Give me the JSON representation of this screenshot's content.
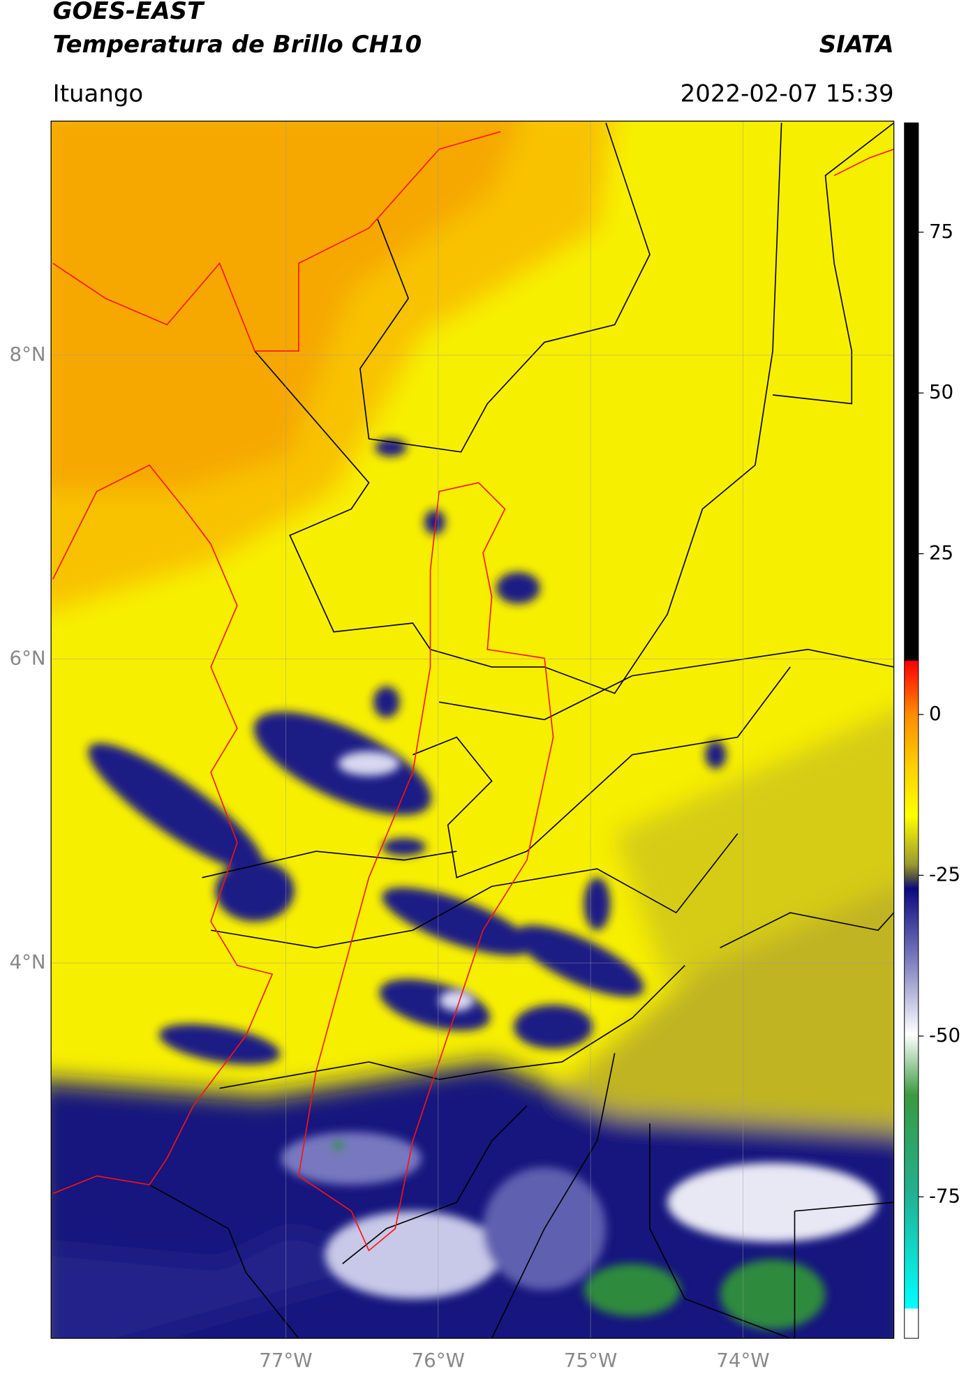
{
  "chart_data": {
    "type": "map",
    "title": "GOES-EAST",
    "subtitle": "Temperatura de Brillo CH10",
    "source": "SIATA",
    "location": "Ituango",
    "datetime": "2022-02-07 15:39",
    "xlim": [
      -78.54,
      -73.01
    ],
    "ylim": [
      1.53,
      9.54
    ],
    "xticks": [
      {
        "value": -77,
        "label": "77°W"
      },
      {
        "value": -76,
        "label": "76°W"
      },
      {
        "value": -75,
        "label": "75°W"
      },
      {
        "value": -74,
        "label": "74°W"
      }
    ],
    "yticks": [
      {
        "value": 8,
        "label": "8°N"
      },
      {
        "value": 6,
        "label": "6°N"
      },
      {
        "value": 4,
        "label": "4°N"
      }
    ],
    "grid": true,
    "colorbar": {
      "lim": [
        -97,
        92
      ],
      "ticks": [
        75,
        50,
        25,
        0,
        -25,
        -50,
        -75
      ]
    }
  }
}
